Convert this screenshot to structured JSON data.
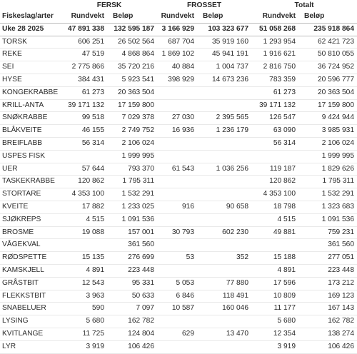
{
  "header": {
    "groups": [
      "FERSK",
      "FROSSET",
      "Totalt"
    ],
    "name_col": "Fiskeslag/arter",
    "sub_cols": [
      "Rundvekt",
      "Beløp",
      "Rundvekt",
      "Beløp",
      "Rundvekt",
      "Beløp"
    ]
  },
  "totals": {
    "label": "Uke 28 2025",
    "values": [
      "47 891 338",
      "132 595 187",
      "3 166 929",
      "103 323 677",
      "51 058 268",
      "235 918 864"
    ]
  },
  "rows": [
    {
      "name": "TORSK",
      "values": [
        "606 251",
        "26 502 564",
        "687 704",
        "35 919 160",
        "1 293 954",
        "62 421 723"
      ]
    },
    {
      "name": "REKE",
      "values": [
        "47 519",
        "4 868 864",
        "1 869 102",
        "45 941 191",
        "1 916 621",
        "50 810 055"
      ]
    },
    {
      "name": "SEI",
      "values": [
        "2 775 866",
        "35 720 216",
        "40 884",
        "1 004 737",
        "2 816 750",
        "36 724 952"
      ]
    },
    {
      "name": "HYSE",
      "values": [
        "384 431",
        "5 923 541",
        "398 929",
        "14 673 236",
        "783 359",
        "20 596 777"
      ]
    },
    {
      "name": "KONGEKRABBE",
      "values": [
        "61 273",
        "20 363 504",
        "",
        "",
        "61 273",
        "20 363 504"
      ]
    },
    {
      "name": "KRILL-ANTA",
      "values": [
        "39 171 132",
        "17 159 800",
        "",
        "",
        "39 171 132",
        "17 159 800"
      ]
    },
    {
      "name": "SNØKRABBE",
      "values": [
        "99 518",
        "7 029 378",
        "27 030",
        "2 395 565",
        "126 547",
        "9 424 944"
      ]
    },
    {
      "name": "BLÅKVEITE",
      "values": [
        "46 155",
        "2 749 752",
        "16 936",
        "1 236 179",
        "63 090",
        "3 985 931"
      ]
    },
    {
      "name": "BREIFLABB",
      "values": [
        "56 314",
        "2 106 024",
        "",
        "",
        "56 314",
        "2 106 024"
      ]
    },
    {
      "name": "USPES FISK",
      "values": [
        "",
        "1 999 995",
        "",
        "",
        "",
        "1 999 995"
      ]
    },
    {
      "name": "UER",
      "values": [
        "57 644",
        "793 370",
        "61 543",
        "1 036 256",
        "119 187",
        "1 829 626"
      ]
    },
    {
      "name": "TASKEKRABBE",
      "values": [
        "120 862",
        "1 795 311",
        "",
        "",
        "120 862",
        "1 795 311"
      ]
    },
    {
      "name": "STORTARE",
      "values": [
        "4 353 100",
        "1 532 291",
        "",
        "",
        "4 353 100",
        "1 532 291"
      ]
    },
    {
      "name": "KVEITE",
      "values": [
        "17 882",
        "1 233 025",
        "916",
        "90 658",
        "18 798",
        "1 323 683"
      ]
    },
    {
      "name": "SJØKREPS",
      "values": [
        "4 515",
        "1 091 536",
        "",
        "",
        "4 515",
        "1 091 536"
      ]
    },
    {
      "name": "BROSME",
      "values": [
        "19 088",
        "157 001",
        "30 793",
        "602 230",
        "49 881",
        "759 231"
      ]
    },
    {
      "name": "VÅGEKVAL",
      "values": [
        "",
        "361 560",
        "",
        "",
        "",
        "361 560"
      ]
    },
    {
      "name": "RØDSPETTE",
      "values": [
        "15 135",
        "276 699",
        "53",
        "352",
        "15 188",
        "277 051"
      ]
    },
    {
      "name": "KAMSKJELL",
      "values": [
        "4 891",
        "223 448",
        "",
        "",
        "4 891",
        "223 448"
      ]
    },
    {
      "name": "GRÅSTBIT",
      "values": [
        "12 543",
        "95 331",
        "5 053",
        "77 880",
        "17 596",
        "173 212"
      ]
    },
    {
      "name": "FLEKKSTBIT",
      "values": [
        "3 963",
        "50 633",
        "6 846",
        "118 491",
        "10 809",
        "169 123"
      ]
    },
    {
      "name": "SNABELUER",
      "values": [
        "590",
        "7 097",
        "10 587",
        "160 046",
        "11 177",
        "167 143"
      ]
    },
    {
      "name": "LYSING",
      "values": [
        "5 680",
        "162 782",
        "",
        "",
        "5 680",
        "162 782"
      ]
    },
    {
      "name": "KVITLANGE",
      "values": [
        "11 725",
        "124 804",
        "629",
        "13 470",
        "12 354",
        "138 274"
      ]
    },
    {
      "name": "LYR",
      "values": [
        "3 919",
        "106 426",
        "",
        "",
        "3 919",
        "106 426"
      ]
    }
  ]
}
